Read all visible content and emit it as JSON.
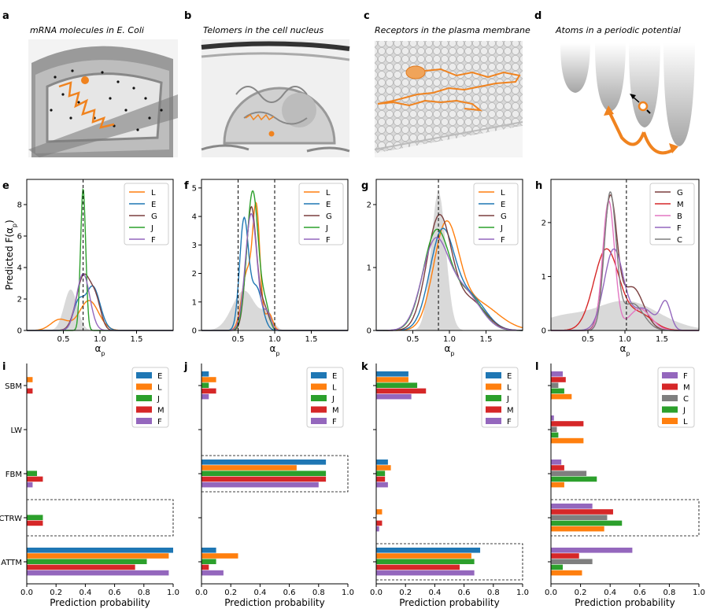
{
  "panels_top": [
    {
      "label": "a",
      "title": "mRNA molecules in E. Coli"
    },
    {
      "label": "b",
      "title": "Telomers in the cell nucleus"
    },
    {
      "label": "c",
      "title": "Receptors in the plasma membrane"
    },
    {
      "label": "d",
      "title": "Atoms in a periodic potential"
    }
  ],
  "colors": {
    "E": "#1f77b4",
    "L": "#ff7f0e",
    "G": "#7b3f3f",
    "J": "#2ca02c",
    "F": "#9467bd",
    "M": "#d62728",
    "B": "#e377c2",
    "C": "#7f7f7f",
    "shade": "#d9d9d9"
  },
  "chart_data": [
    {
      "panel": "e",
      "type": "line",
      "xlabel": "α_p",
      "ylabel": "Predicted F(α_p)",
      "xlim": [
        0,
        2.0
      ],
      "ylim": [
        0,
        9.6
      ],
      "xticks": [
        "0.5",
        "1.0",
        "1.5"
      ],
      "xtick_values": [
        0.5,
        1.0,
        1.5
      ],
      "yticks": [
        "0",
        "2",
        "4",
        "6",
        "8"
      ],
      "ytick_values": [
        0,
        2,
        4,
        6,
        8
      ],
      "vlines": [
        0.77
      ],
      "legend": [
        "L",
        "E",
        "G",
        "J",
        "F"
      ],
      "series": [
        {
          "name": "L",
          "peaks": [
            [
              0.85,
              1.9,
              0.13
            ],
            [
              0.45,
              0.7,
              0.12
            ]
          ]
        },
        {
          "name": "E",
          "peaks": [
            [
              0.9,
              2.8,
              0.1
            ],
            [
              0.7,
              1.6,
              0.07
            ]
          ]
        },
        {
          "name": "G",
          "peaks": [
            [
              0.78,
              3.5,
              0.1
            ],
            [
              0.95,
              1.5,
              0.07
            ]
          ]
        },
        {
          "name": "J",
          "peaks": [
            [
              0.77,
              9.0,
              0.035
            ]
          ]
        },
        {
          "name": "F",
          "peaks": [
            [
              0.77,
              3.6,
              0.09
            ]
          ]
        }
      ],
      "shade": [
        [
          0.6,
          2.6,
          0.09
        ]
      ]
    },
    {
      "panel": "f",
      "type": "line",
      "xlabel": "α_p",
      "ylabel": "",
      "xlim": [
        0,
        2.0
      ],
      "ylim": [
        0,
        5.3
      ],
      "xticks": [
        "0.5",
        "1.0",
        "1.5"
      ],
      "xtick_values": [
        0.5,
        1.0,
        1.5
      ],
      "yticks": [
        "0",
        "1",
        "2",
        "3",
        "4",
        "5"
      ],
      "ytick_values": [
        0,
        1,
        2,
        3,
        4,
        5
      ],
      "vlines": [
        0.5,
        1.0
      ],
      "legend": [
        "L",
        "E",
        "G",
        "J",
        "F"
      ],
      "series": [
        {
          "name": "L",
          "peaks": [
            [
              0.75,
              4.1,
              0.05
            ],
            [
              0.62,
              2.0,
              0.07
            ],
            [
              0.92,
              0.6,
              0.05
            ]
          ]
        },
        {
          "name": "E",
          "peaks": [
            [
              0.58,
              3.8,
              0.06
            ],
            [
              0.75,
              1.5,
              0.08
            ]
          ]
        },
        {
          "name": "G",
          "peaks": [
            [
              0.68,
              4.3,
              0.07
            ],
            [
              0.85,
              0.8,
              0.07
            ]
          ]
        },
        {
          "name": "J",
          "peaks": [
            [
              0.7,
              4.9,
              0.08
            ],
            [
              0.88,
              0.7,
              0.05
            ]
          ]
        },
        {
          "name": "F",
          "peaks": [
            [
              0.68,
              4.1,
              0.08
            ],
            [
              0.9,
              0.6,
              0.05
            ]
          ]
        }
      ],
      "shade": [
        [
          0.58,
          1.4,
          0.16
        ],
        [
          0.9,
          0.5,
          0.08
        ]
      ]
    },
    {
      "panel": "g",
      "type": "line",
      "xlabel": "α_p",
      "ylabel": "",
      "xlim": [
        0,
        2.0
      ],
      "ylim": [
        0,
        2.4
      ],
      "xticks": [
        "0.5",
        "1.0",
        "1.5"
      ],
      "xtick_values": [
        0.5,
        1.0,
        1.5
      ],
      "yticks": [
        "0",
        "1",
        "2"
      ],
      "ytick_values": [
        0,
        1,
        2
      ],
      "vlines": [
        0.85
      ],
      "legend": [
        "L",
        "E",
        "G",
        "J",
        "F"
      ],
      "series": [
        {
          "name": "L",
          "peaks": [
            [
              0.95,
              1.55,
              0.17
            ],
            [
              1.35,
              0.45,
              0.3
            ]
          ]
        },
        {
          "name": "E",
          "peaks": [
            [
              0.9,
              1.55,
              0.17
            ],
            [
              1.3,
              0.5,
              0.2
            ]
          ]
        },
        {
          "name": "G",
          "peaks": [
            [
              0.86,
              1.8,
              0.17
            ],
            [
              1.3,
              0.45,
              0.2
            ]
          ]
        },
        {
          "name": "J",
          "peaks": [
            [
              0.82,
              1.55,
              0.18
            ],
            [
              1.25,
              0.55,
              0.2
            ]
          ]
        },
        {
          "name": "F",
          "peaks": [
            [
              0.8,
              1.35,
              0.18
            ],
            [
              1.2,
              0.6,
              0.22
            ]
          ]
        }
      ],
      "shade": [
        [
          0.85,
          2.2,
          0.1
        ]
      ]
    },
    {
      "panel": "h",
      "type": "line",
      "xlabel": "α_p",
      "ylabel": "",
      "xlim": [
        0,
        2.0
      ],
      "ylim": [
        0,
        2.8
      ],
      "xticks": [
        "0.5",
        "1.0",
        "1.5"
      ],
      "xtick_values": [
        0.5,
        1.0,
        1.5
      ],
      "yticks": [
        "0",
        "1",
        "2"
      ],
      "ytick_values": [
        0,
        1,
        2
      ],
      "vlines": [
        1.02
      ],
      "legend": [
        "G",
        "M",
        "B",
        "F",
        "C"
      ],
      "series": [
        {
          "name": "G",
          "peaks": [
            [
              0.8,
              2.4,
              0.09
            ],
            [
              1.1,
              0.8,
              0.15
            ]
          ]
        },
        {
          "name": "M",
          "peaks": [
            [
              0.75,
              1.5,
              0.17
            ],
            [
              1.2,
              0.3,
              0.18
            ]
          ]
        },
        {
          "name": "B",
          "peaks": [
            [
              0.78,
              2.4,
              0.08
            ],
            [
              1.2,
              0.4,
              0.15
            ]
          ]
        },
        {
          "name": "F",
          "peaks": [
            [
              0.85,
              1.5,
              0.13
            ],
            [
              1.55,
              0.5,
              0.07
            ],
            [
              1.25,
              0.4,
              0.15
            ]
          ]
        },
        {
          "name": "C",
          "peaks": [
            [
              0.8,
              2.5,
              0.08
            ],
            [
              1.1,
              0.5,
              0.15
            ]
          ]
        }
      ],
      "shade": [
        [
          1.0,
          0.55,
          0.45
        ],
        [
          0.1,
          0.2,
          0.3
        ]
      ]
    },
    {
      "panel": "i",
      "type": "bar",
      "orientation": "horizontal",
      "xlabel": "Prediction probability",
      "xlim": [
        0,
        1.0
      ],
      "xticks": [
        "0.0",
        "0.2",
        "0.4",
        "0.6",
        "0.8",
        "1.0"
      ],
      "xtick_values": [
        0,
        0.2,
        0.4,
        0.6,
        0.8,
        1.0
      ],
      "categories": [
        "SBM",
        "LW",
        "FBM",
        "CTRW",
        "ATTM"
      ],
      "show_cat_labels": true,
      "legend": [
        "E",
        "L",
        "J",
        "M",
        "F"
      ],
      "highlight": "CTRW",
      "series": [
        {
          "name": "E",
          "values": [
            0,
            0,
            0,
            0,
            1.0
          ]
        },
        {
          "name": "L",
          "values": [
            0.04,
            0,
            0,
            0,
            0.97
          ]
        },
        {
          "name": "J",
          "values": [
            0,
            0,
            0.07,
            0.11,
            0.82
          ]
        },
        {
          "name": "M",
          "values": [
            0.04,
            0,
            0.11,
            0.11,
            0.74
          ]
        },
        {
          "name": "F",
          "values": [
            0,
            0,
            0.04,
            0,
            0.97
          ]
        }
      ]
    },
    {
      "panel": "j",
      "type": "bar",
      "orientation": "horizontal",
      "xlabel": "Prediction probability",
      "xlim": [
        0,
        1.0
      ],
      "xticks": [
        "0.0",
        "0.2",
        "0.4",
        "0.6",
        "0.8",
        "1.0"
      ],
      "xtick_values": [
        0,
        0.2,
        0.4,
        0.6,
        0.8,
        1.0
      ],
      "categories": [
        "SBM",
        "LW",
        "FBM",
        "CTRW",
        "ATTM"
      ],
      "show_cat_labels": false,
      "legend": [
        "E",
        "L",
        "J",
        "M",
        "F"
      ],
      "highlight": "FBM",
      "series": [
        {
          "name": "E",
          "values": [
            0.05,
            0,
            0.85,
            0,
            0.1
          ]
        },
        {
          "name": "L",
          "values": [
            0.1,
            0,
            0.65,
            0,
            0.25
          ]
        },
        {
          "name": "J",
          "values": [
            0.05,
            0,
            0.85,
            0,
            0.1
          ]
        },
        {
          "name": "M",
          "values": [
            0.1,
            0,
            0.85,
            0,
            0.05
          ]
        },
        {
          "name": "F",
          "values": [
            0.05,
            0,
            0.8,
            0,
            0.15
          ]
        }
      ]
    },
    {
      "panel": "k",
      "type": "bar",
      "orientation": "horizontal",
      "xlabel": "Prediction probability",
      "xlim": [
        0,
        1.0
      ],
      "xticks": [
        "0.0",
        "0.2",
        "0.4",
        "0.6",
        "0.8",
        "1.0"
      ],
      "xtick_values": [
        0,
        0.2,
        0.4,
        0.6,
        0.8,
        1.0
      ],
      "categories": [
        "SBM",
        "LW",
        "FBM",
        "CTRW",
        "ATTM"
      ],
      "show_cat_labels": false,
      "legend": [
        "E",
        "L",
        "J",
        "M",
        "F"
      ],
      "highlight": "ATTM",
      "series": [
        {
          "name": "E",
          "values": [
            0.22,
            0,
            0.08,
            0,
            0.71
          ]
        },
        {
          "name": "L",
          "values": [
            0.22,
            0,
            0.1,
            0.04,
            0.65
          ]
        },
        {
          "name": "J",
          "values": [
            0.28,
            0,
            0.06,
            0,
            0.67
          ]
        },
        {
          "name": "M",
          "values": [
            0.34,
            0,
            0.06,
            0.04,
            0.57
          ]
        },
        {
          "name": "F",
          "values": [
            0.24,
            0,
            0.08,
            0.02,
            0.67
          ]
        }
      ]
    },
    {
      "panel": "l",
      "type": "bar",
      "orientation": "horizontal",
      "xlabel": "Prediction probability",
      "xlim": [
        0,
        1.0
      ],
      "xticks": [
        "0.0",
        "0.2",
        "0.4",
        "0.6",
        "0.8",
        "1.0"
      ],
      "xtick_values": [
        0,
        0.2,
        0.4,
        0.6,
        0.8,
        1.0
      ],
      "categories": [
        "SBM",
        "LW",
        "FBM",
        "CTRW",
        "ATTM"
      ],
      "show_cat_labels": false,
      "legend": [
        "F",
        "M",
        "C",
        "J",
        "L"
      ],
      "highlight": "CTRW",
      "series": [
        {
          "name": "F",
          "values": [
            0.08,
            0.02,
            0.07,
            0.28,
            0.55
          ]
        },
        {
          "name": "M",
          "values": [
            0.1,
            0.22,
            0.09,
            0.42,
            0.19
          ]
        },
        {
          "name": "C",
          "values": [
            0.05,
            0.04,
            0.24,
            0.38,
            0.28
          ]
        },
        {
          "name": "J",
          "values": [
            0.09,
            0.05,
            0.31,
            0.48,
            0.08
          ]
        },
        {
          "name": "L",
          "values": [
            0.14,
            0.22,
            0.09,
            0.36,
            0.21
          ]
        }
      ]
    }
  ]
}
